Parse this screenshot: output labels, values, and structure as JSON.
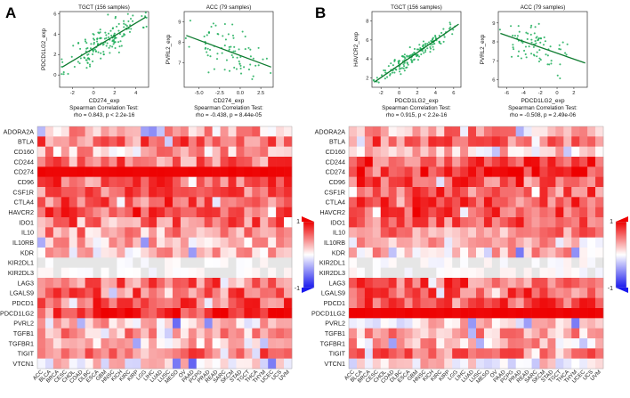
{
  "panels": {
    "A": {
      "label": "A",
      "scatters": [
        {
          "title": "TGCT (156 samples)",
          "xlabel": "CD274_exp",
          "ylabel": "PDCD1LG2_exp",
          "xticks": [
            "-2",
            "0",
            "2",
            "4"
          ],
          "yticks": [
            "0",
            "2",
            "4",
            "6"
          ],
          "xrange": [
            -3.2,
            5.2
          ],
          "yrange": [
            -1.2,
            6.2
          ],
          "slope": 0.62,
          "intercept": 2.6,
          "n": 156,
          "seed": 11,
          "noise": 0.9,
          "xcenter": 1.0,
          "xspread": 1.7,
          "test_label": "Spearman Correlation Test:",
          "stat_text": "rho = 0.843, p < 2.2e-16"
        },
        {
          "title": "ACC (79 samples)",
          "xlabel": "CD274_exp",
          "ylabel": "PVRL2_exp",
          "xticks": [
            "-5.0",
            "-2.5",
            "0.0",
            "2.5"
          ],
          "yticks": [
            "7",
            "8",
            "9"
          ],
          "xrange": [
            -6.8,
            4.0
          ],
          "yrange": [
            5.8,
            9.5
          ],
          "slope": -0.15,
          "intercept": 7.35,
          "n": 79,
          "seed": 23,
          "noise": 0.55,
          "xcenter": -1.6,
          "xspread": 2.1,
          "test_label": "Spearman Correlation Test:",
          "stat_text": "rho = -0.438, p = 8.44e-05"
        }
      ]
    },
    "B": {
      "label": "B",
      "scatters": [
        {
          "title": "TGCT (156 samples)",
          "xlabel": "PDCD1LG2_exp",
          "ylabel": "HAVCR2_exp",
          "xticks": [
            "-2",
            "0",
            "2",
            "4",
            "6"
          ],
          "yticks": [
            "2",
            "4",
            "6",
            "8"
          ],
          "xrange": [
            -3.0,
            6.8
          ],
          "yrange": [
            1.0,
            9.0
          ],
          "slope": 0.66,
          "intercept": 3.35,
          "n": 156,
          "seed": 37,
          "noise": 0.45,
          "xcenter": 1.6,
          "xspread": 1.9,
          "test_label": "Spearman Correlation Test:",
          "stat_text": "rho = 0.915, p < 2.2e-16"
        },
        {
          "title": "ACC (79 samples)",
          "xlabel": "PDCD1LG2_exp",
          "ylabel": "PVRL2_exp",
          "xticks": [
            "-6",
            "-4",
            "-2",
            "0",
            "2"
          ],
          "yticks": [
            "6",
            "7",
            "8",
            "9"
          ],
          "xrange": [
            -7.0,
            3.6
          ],
          "yrange": [
            5.6,
            9.6
          ],
          "slope": -0.155,
          "intercept": 7.4,
          "n": 79,
          "seed": 41,
          "noise": 0.5,
          "xcenter": -2.2,
          "xspread": 2.0,
          "test_label": "Spearman Correlation Test:",
          "stat_text": "rho = -0.508, p = 2.49e-06"
        }
      ]
    }
  },
  "chart_data": {
    "type": "heatmap",
    "genes": [
      "ADORA2A",
      "BTLA",
      "CD160",
      "CD244",
      "CD274",
      "CD96",
      "CSF1R",
      "CTLA4",
      "HAVCR2",
      "IDO1",
      "IL10",
      "IL10RB",
      "KDR",
      "KIR2DL1",
      "KIR2DL3",
      "LAG3",
      "LGALS9",
      "PDCD1",
      "PDCD1LG2",
      "PVRL2",
      "TGFB1",
      "TGFBR1",
      "TIGIT",
      "VTCN1"
    ],
    "cancers": [
      "ACC",
      "BLCA",
      "BRCA",
      "CESC",
      "CHOL",
      "COAD",
      "DLBC",
      "ESCA",
      "GBM",
      "HNSC",
      "KICH",
      "KIRC",
      "KIRP",
      "LGG",
      "LIHC",
      "LUAD",
      "LUSC",
      "MESO",
      "OV",
      "PAAD",
      "PCPG",
      "PRAD",
      "READ",
      "SARC",
      "SKCM",
      "STAD",
      "TGCT",
      "THCA",
      "THYM",
      "UCEC",
      "UCS",
      "UVM"
    ],
    "legend": {
      "max_label": "1",
      "min_label": "-1",
      "range": [
        -1,
        1
      ]
    },
    "colors": {
      "high": "#ee0000",
      "mid": "#ffffff",
      "low": "#1a1aee",
      "point": "#1fae5a",
      "line": "#0c7a2e"
    },
    "panels": [
      {
        "panel": "A",
        "reference_gene": "CD274",
        "gene_levels": [
          0.35,
          0.55,
          0.3,
          0.55,
          1.0,
          0.6,
          0.55,
          0.6,
          0.65,
          0.55,
          0.4,
          0.25,
          0.2,
          0.05,
          0.05,
          0.55,
          0.55,
          0.6,
          0.85,
          0.2,
          0.35,
          0.25,
          0.5,
          0.1
        ]
      },
      {
        "panel": "B",
        "reference_gene": "PDCD1LG2",
        "gene_levels": [
          0.4,
          0.55,
          0.25,
          0.65,
          0.85,
          0.65,
          0.65,
          0.65,
          0.7,
          0.65,
          0.45,
          0.25,
          0.25,
          0.05,
          0.05,
          0.6,
          0.6,
          0.6,
          1.0,
          0.1,
          0.35,
          0.25,
          0.55,
          0.1
        ]
      }
    ]
  }
}
